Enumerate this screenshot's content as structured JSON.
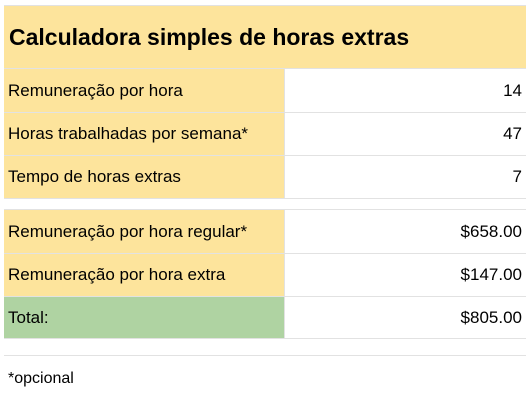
{
  "title": "Calculadora simples de horas extras",
  "inputs": [
    {
      "label": "Remuneração por hora",
      "value": "14"
    },
    {
      "label": "Horas trabalhadas por semana*",
      "value": "47"
    },
    {
      "label": "Tempo de horas extras",
      "value": "7"
    }
  ],
  "results": [
    {
      "label": "Remuneração por hora regular*",
      "value": "$658.00"
    },
    {
      "label": "Remuneração por hora extra",
      "value": "$147.00"
    }
  ],
  "total": {
    "label": "Total:",
    "value": "$805.00"
  },
  "note": "*opcional",
  "colors": {
    "header_fill": "#fde49c",
    "total_fill": "#afd3a2",
    "gridline": "#e2e2e2"
  }
}
